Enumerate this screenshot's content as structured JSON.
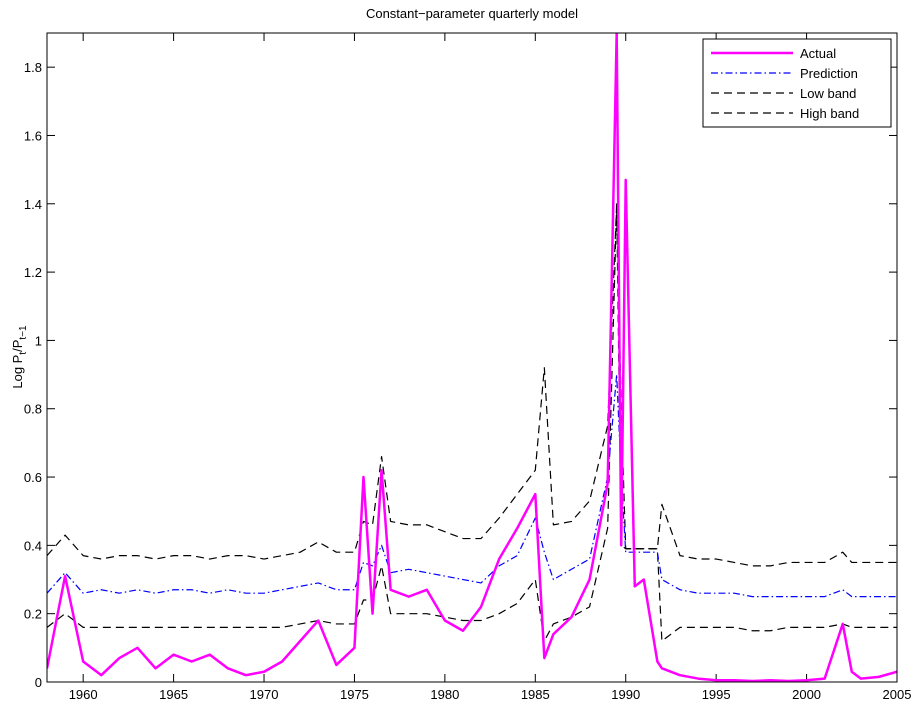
{
  "chart_data": {
    "type": "line",
    "title": "Constant−parameter quarterly model",
    "y_label": {
      "main": "Log P",
      "sub1": "t",
      "mid": "/P",
      "sub2": "t−1"
    },
    "x": [
      1958,
      1959,
      1960,
      1961,
      1962,
      1963,
      1964,
      1965,
      1966,
      1967,
      1968,
      1969,
      1970,
      1971,
      1972,
      1973,
      1974,
      1975,
      1975.5,
      1976,
      1976.5,
      1977,
      1978,
      1979,
      1980,
      1981,
      1982,
      1983,
      1984,
      1985,
      1985.5,
      1986,
      1987,
      1988,
      1989,
      1989.5,
      1989.75,
      1990,
      1990.5,
      1991,
      1991.75,
      1992,
      1993,
      1994,
      1995,
      1996,
      1997,
      1998,
      1999,
      2000,
      2001,
      2002,
      2002.5,
      2003,
      2004,
      2005
    ],
    "series": [
      {
        "name": "Actual",
        "color": "#ff00ff",
        "style": "solid",
        "values": [
          0.04,
          0.31,
          0.06,
          0.02,
          0.07,
          0.1,
          0.04,
          0.08,
          0.06,
          0.08,
          0.04,
          0.02,
          0.03,
          0.06,
          0.12,
          0.18,
          0.05,
          0.1,
          0.6,
          0.2,
          0.62,
          0.27,
          0.25,
          0.27,
          0.18,
          0.15,
          0.22,
          0.36,
          0.45,
          0.55,
          0.07,
          0.14,
          0.19,
          0.3,
          0.58,
          1.9,
          0.4,
          1.47,
          0.28,
          0.3,
          0.06,
          0.04,
          0.02,
          0.01,
          0.005,
          0.005,
          0.003,
          0.005,
          0.003,
          0.005,
          0.01,
          0.17,
          0.03,
          0.01,
          0.015,
          0.03
        ]
      },
      {
        "name": "Prediction",
        "color": "#0000ff",
        "style": "dashdot",
        "values": [
          0.26,
          0.32,
          0.26,
          0.27,
          0.26,
          0.27,
          0.26,
          0.27,
          0.27,
          0.26,
          0.27,
          0.26,
          0.26,
          0.27,
          0.28,
          0.29,
          0.27,
          0.27,
          0.35,
          0.34,
          0.4,
          0.32,
          0.33,
          0.32,
          0.31,
          0.3,
          0.29,
          0.34,
          0.37,
          0.48,
          0.38,
          0.3,
          0.33,
          0.36,
          0.6,
          0.9,
          0.6,
          0.38,
          0.38,
          0.38,
          0.38,
          0.3,
          0.27,
          0.26,
          0.26,
          0.26,
          0.25,
          0.25,
          0.25,
          0.25,
          0.25,
          0.27,
          0.25,
          0.25,
          0.25,
          0.25
        ]
      },
      {
        "name": "Low band",
        "color": "#000000",
        "style": "dashed",
        "values": [
          0.16,
          0.2,
          0.16,
          0.16,
          0.16,
          0.16,
          0.16,
          0.16,
          0.16,
          0.16,
          0.16,
          0.16,
          0.16,
          0.16,
          0.17,
          0.18,
          0.17,
          0.17,
          0.24,
          0.24,
          0.34,
          0.2,
          0.2,
          0.2,
          0.19,
          0.18,
          0.18,
          0.2,
          0.23,
          0.3,
          0.12,
          0.17,
          0.19,
          0.22,
          0.45,
          1.4,
          0.4,
          0.39,
          0.39,
          0.39,
          0.39,
          0.12,
          0.16,
          0.16,
          0.16,
          0.16,
          0.15,
          0.15,
          0.16,
          0.16,
          0.16,
          0.17,
          0.16,
          0.16,
          0.16,
          0.16
        ]
      },
      {
        "name": "High band",
        "color": "#000000",
        "style": "dashed",
        "values": [
          0.37,
          0.43,
          0.37,
          0.36,
          0.37,
          0.37,
          0.36,
          0.37,
          0.37,
          0.36,
          0.37,
          0.37,
          0.36,
          0.37,
          0.38,
          0.41,
          0.38,
          0.38,
          0.47,
          0.46,
          0.66,
          0.47,
          0.46,
          0.46,
          0.44,
          0.42,
          0.42,
          0.48,
          0.55,
          0.62,
          0.92,
          0.46,
          0.47,
          0.53,
          0.75,
          1.4,
          0.8,
          0.39,
          0.39,
          0.39,
          0.39,
          0.52,
          0.37,
          0.36,
          0.36,
          0.35,
          0.34,
          0.34,
          0.35,
          0.35,
          0.35,
          0.38,
          0.35,
          0.35,
          0.35,
          0.35
        ]
      }
    ],
    "xlim": [
      1958,
      2005
    ],
    "xticks": [
      1960,
      1965,
      1970,
      1975,
      1980,
      1985,
      1990,
      1995,
      2000,
      2005
    ],
    "ylim": [
      0,
      1.9
    ],
    "yticks": [
      0,
      0.2,
      0.4,
      0.6,
      0.8,
      1,
      1.2,
      1.4,
      1.6,
      1.8
    ],
    "legend": "northeast",
    "grid": false
  }
}
